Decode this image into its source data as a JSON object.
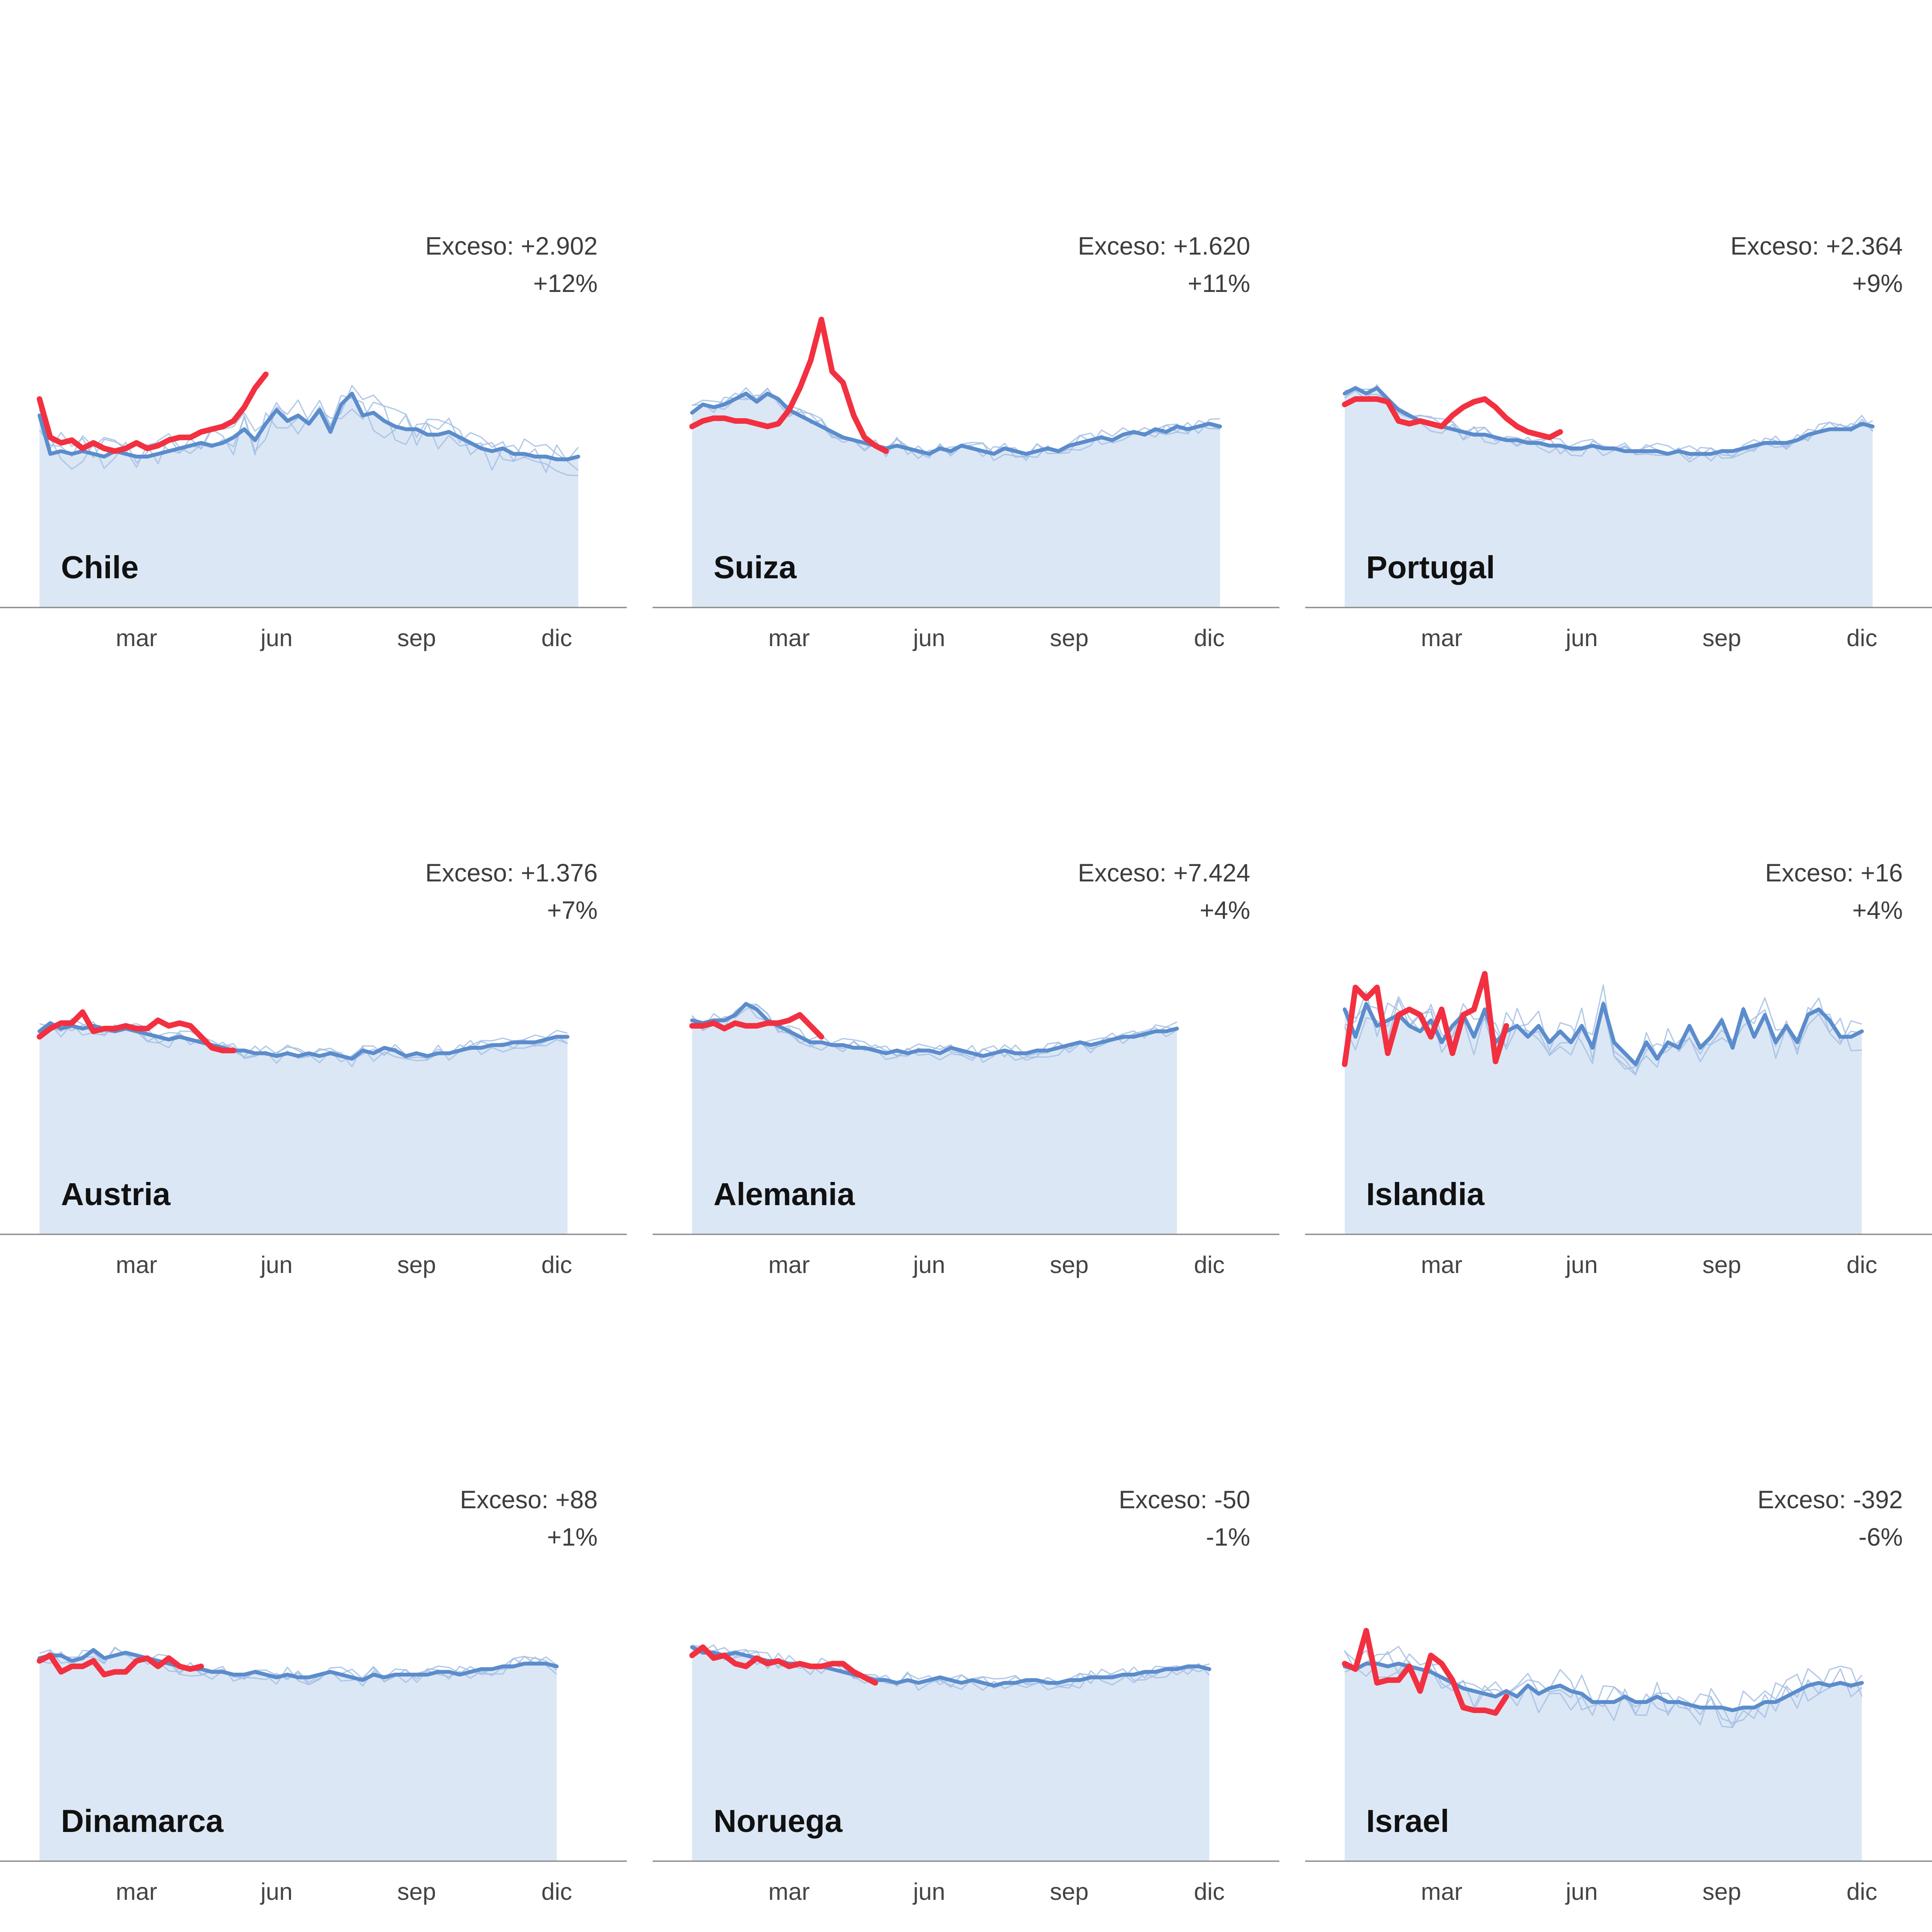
{
  "colors": {
    "current_year": "#f23040",
    "average": "#5b8ccc",
    "prior_years": "#a4c0e4",
    "area_fill": "#dce7f5",
    "axis": "#888888"
  },
  "month_ticks": [
    "mar",
    "jun",
    "sep",
    "dic"
  ],
  "chart_data": [
    {
      "type": "line",
      "country": "Chile",
      "excess_label": "Exceso: +2.902",
      "excess_pct": "+12%",
      "x_ticks": [
        "mar",
        "jun",
        "sep",
        "dic"
      ],
      "current_year": [
        76,
        62,
        60,
        61,
        58,
        60,
        58,
        57,
        58,
        60,
        58,
        59,
        61,
        62,
        62,
        64,
        65,
        66,
        68,
        73,
        80,
        85
      ],
      "average": [
        70,
        56,
        57,
        56,
        57,
        56,
        55,
        57,
        56,
        55,
        55,
        56,
        57,
        58,
        59,
        60,
        59,
        60,
        62,
        65,
        61,
        67,
        72,
        68,
        70,
        67,
        72,
        64,
        74,
        78,
        70,
        71,
        68,
        66,
        65,
        65,
        63,
        63,
        64,
        62,
        60,
        58,
        57,
        58,
        56,
        56,
        55,
        55,
        54,
        54,
        55
      ]
    },
    {
      "type": "line",
      "country": "Suiza",
      "excess_label": "Exceso: +1.620",
      "excess_pct": "+11%",
      "x_ticks": [
        "mar",
        "jun",
        "sep",
        "dic"
      ],
      "current_year": [
        66,
        68,
        69,
        69,
        68,
        68,
        67,
        66,
        67,
        72,
        80,
        90,
        105,
        86,
        82,
        70,
        62,
        59,
        57
      ],
      "average": [
        71,
        74,
        73,
        74,
        76,
        78,
        75,
        78,
        76,
        72,
        70,
        68,
        66,
        64,
        62,
        61,
        60,
        59,
        58,
        59,
        58,
        57,
        56,
        58,
        57,
        59,
        58,
        57,
        56,
        58,
        57,
        56,
        57,
        58,
        57,
        59,
        60,
        61,
        62,
        61,
        63,
        64,
        63,
        65,
        64,
        66,
        65,
        66,
        67,
        66
      ]
    },
    {
      "type": "line",
      "country": "Portugal",
      "excess_label": "Exceso: +2.364",
      "excess_pct": "+9%",
      "x_ticks": [
        "mar",
        "jun",
        "sep",
        "dic"
      ],
      "current_year": [
        74,
        76,
        76,
        76,
        75,
        68,
        67,
        68,
        67,
        66,
        70,
        73,
        75,
        76,
        73,
        69,
        66,
        64,
        63,
        62,
        64
      ],
      "average": [
        78,
        80,
        78,
        80,
        76,
        72,
        70,
        68,
        67,
        66,
        65,
        64,
        63,
        63,
        62,
        61,
        61,
        60,
        60,
        59,
        59,
        58,
        58,
        59,
        58,
        58,
        57,
        57,
        57,
        57,
        56,
        57,
        56,
        56,
        56,
        57,
        57,
        58,
        59,
        60,
        60,
        60,
        61,
        63,
        64,
        65,
        65,
        65,
        67,
        66
      ]
    },
    {
      "type": "line",
      "country": "Austria",
      "excess_label": "Exceso: +1.376",
      "excess_pct": "+7%",
      "x_ticks": [
        "mar",
        "jun",
        "sep",
        "dic"
      ],
      "current_year": [
        72,
        75,
        77,
        77,
        81,
        74,
        75,
        75,
        76,
        75,
        75,
        78,
        76,
        77,
        76,
        72,
        68,
        67,
        67
      ],
      "average": [
        74,
        77,
        75,
        76,
        75,
        76,
        75,
        74,
        75,
        74,
        73,
        72,
        71,
        72,
        71,
        70,
        69,
        68,
        67,
        67,
        66,
        66,
        65,
        66,
        65,
        66,
        65,
        66,
        65,
        64,
        67,
        66,
        68,
        67,
        65,
        66,
        65,
        66,
        66,
        67,
        68,
        68,
        69,
        69,
        70,
        70,
        70,
        71,
        72,
        72
      ]
    },
    {
      "type": "line",
      "country": "Alemania",
      "excess_label": "Exceso: +7.424",
      "excess_pct": "+4%",
      "x_ticks": [
        "mar",
        "jun",
        "sep",
        "dic"
      ],
      "current_year": [
        76,
        76,
        77,
        75,
        77,
        76,
        76,
        77,
        77,
        78,
        80,
        76,
        72
      ],
      "average": [
        78,
        77,
        78,
        78,
        80,
        84,
        82,
        78,
        76,
        74,
        72,
        70,
        70,
        69,
        69,
        68,
        68,
        67,
        66,
        67,
        66,
        67,
        67,
        66,
        68,
        67,
        66,
        65,
        66,
        67,
        66,
        66,
        67,
        67,
        68,
        69,
        70,
        69,
        70,
        71,
        72,
        72,
        73,
        74,
        74,
        75
      ]
    },
    {
      "type": "line",
      "country": "Islandia",
      "excess_label": "Exceso: +16",
      "excess_pct": "+4%",
      "x_ticks": [
        "mar",
        "jun",
        "sep",
        "dic"
      ],
      "current_year": [
        62,
        90,
        86,
        90,
        66,
        80,
        82,
        80,
        72,
        82,
        66,
        80,
        82,
        95,
        63,
        76
      ],
      "average": [
        82,
        72,
        84,
        76,
        78,
        80,
        76,
        74,
        78,
        70,
        76,
        80,
        72,
        82,
        70,
        74,
        76,
        72,
        76,
        70,
        74,
        70,
        76,
        68,
        84,
        70,
        66,
        62,
        70,
        64,
        70,
        68,
        76,
        68,
        72,
        78,
        68,
        82,
        72,
        80,
        70,
        76,
        70,
        80,
        82,
        78,
        72,
        72,
        74
      ]
    },
    {
      "type": "line",
      "country": "Dinamarca",
      "excess_label": "Exceso: +88",
      "excess_pct": "+1%",
      "x_ticks": [
        "mar",
        "jun",
        "sep",
        "dic"
      ],
      "current_year": [
        73,
        75,
        69,
        71,
        71,
        73,
        68,
        69,
        69,
        73,
        74,
        71,
        74,
        71,
        70,
        71
      ],
      "average": [
        74,
        75,
        75,
        73,
        74,
        77,
        74,
        75,
        76,
        75,
        74,
        73,
        72,
        71,
        70,
        70,
        69,
        69,
        68,
        68,
        69,
        68,
        67,
        68,
        67,
        67,
        68,
        69,
        68,
        67,
        66,
        68,
        67,
        68,
        68,
        68,
        68,
        69,
        69,
        68,
        69,
        70,
        70,
        71,
        71,
        72,
        72,
        72,
        71
      ]
    },
    {
      "type": "line",
      "country": "Noruega",
      "excess_label": "Exceso: -50",
      "excess_pct": "-1%",
      "x_ticks": [
        "mar",
        "jun",
        "sep",
        "dic"
      ],
      "current_year": [
        75,
        78,
        74,
        75,
        72,
        71,
        74,
        72,
        73,
        71,
        72,
        71,
        71,
        72,
        72,
        69,
        67,
        65
      ],
      "average": [
        78,
        76,
        76,
        75,
        76,
        75,
        74,
        73,
        73,
        72,
        72,
        71,
        71,
        70,
        69,
        68,
        67,
        66,
        66,
        65,
        66,
        65,
        66,
        67,
        66,
        65,
        66,
        65,
        64,
        65,
        65,
        66,
        66,
        65,
        65,
        66,
        66,
        67,
        67,
        67,
        68,
        68,
        69,
        69,
        70,
        70,
        71,
        71,
        70
      ]
    },
    {
      "type": "line",
      "country": "Israel",
      "excess_label": "Exceso: -392",
      "excess_pct": "-6%",
      "x_ticks": [
        "mar",
        "jun",
        "sep",
        "dic"
      ],
      "current_year": [
        72,
        70,
        84,
        65,
        66,
        66,
        71,
        62,
        75,
        72,
        66,
        56,
        55,
        55,
        54,
        60
      ],
      "average": [
        71,
        70,
        72,
        72,
        71,
        72,
        71,
        70,
        69,
        67,
        65,
        63,
        62,
        61,
        60,
        62,
        60,
        64,
        61,
        63,
        64,
        62,
        61,
        58,
        58,
        58,
        60,
        58,
        58,
        60,
        58,
        58,
        57,
        56,
        56,
        56,
        55,
        56,
        56,
        58,
        58,
        60,
        62,
        64,
        65,
        64,
        65,
        64,
        65
      ]
    }
  ]
}
